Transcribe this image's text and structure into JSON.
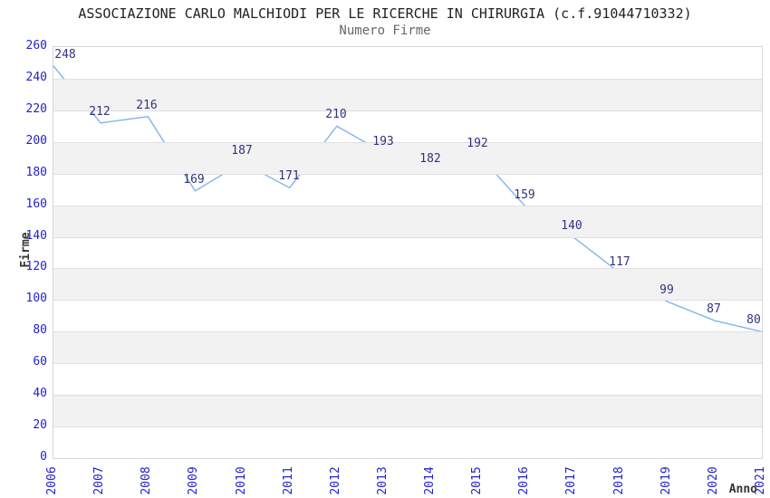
{
  "chart_data": {
    "type": "line",
    "title": "ASSOCIAZIONE CARLO MALCHIODI PER LE RICERCHE IN CHIRURGIA (c.f.91044710332)",
    "subtitle": "Numero Firme",
    "xlabel": "Anno",
    "ylabel": "Firme",
    "categories": [
      "2006",
      "2007",
      "2008",
      "2009",
      "2010",
      "2011",
      "2012",
      "2013",
      "2014",
      "2015",
      "2016",
      "2017",
      "2018",
      "2019",
      "2020",
      "2021"
    ],
    "values": [
      248,
      212,
      216,
      169,
      187,
      171,
      210,
      193,
      182,
      192,
      159,
      140,
      117,
      99,
      87,
      80
    ],
    "ylim": [
      0,
      260
    ],
    "ytick_step": 20,
    "grid": "horizontal-bands",
    "legend": "none",
    "point_labels_visible": true,
    "colors": {
      "line": "#88b9ea",
      "point_label": "#333380",
      "tick_label": "#2222cc",
      "title": "#222222",
      "subtitle": "#666666",
      "axis_title": "#333333",
      "band": "#f2f2f2",
      "gridline": "#e0e0e0",
      "plot_border": "#d6d6d6",
      "background": "#ffffff"
    }
  }
}
